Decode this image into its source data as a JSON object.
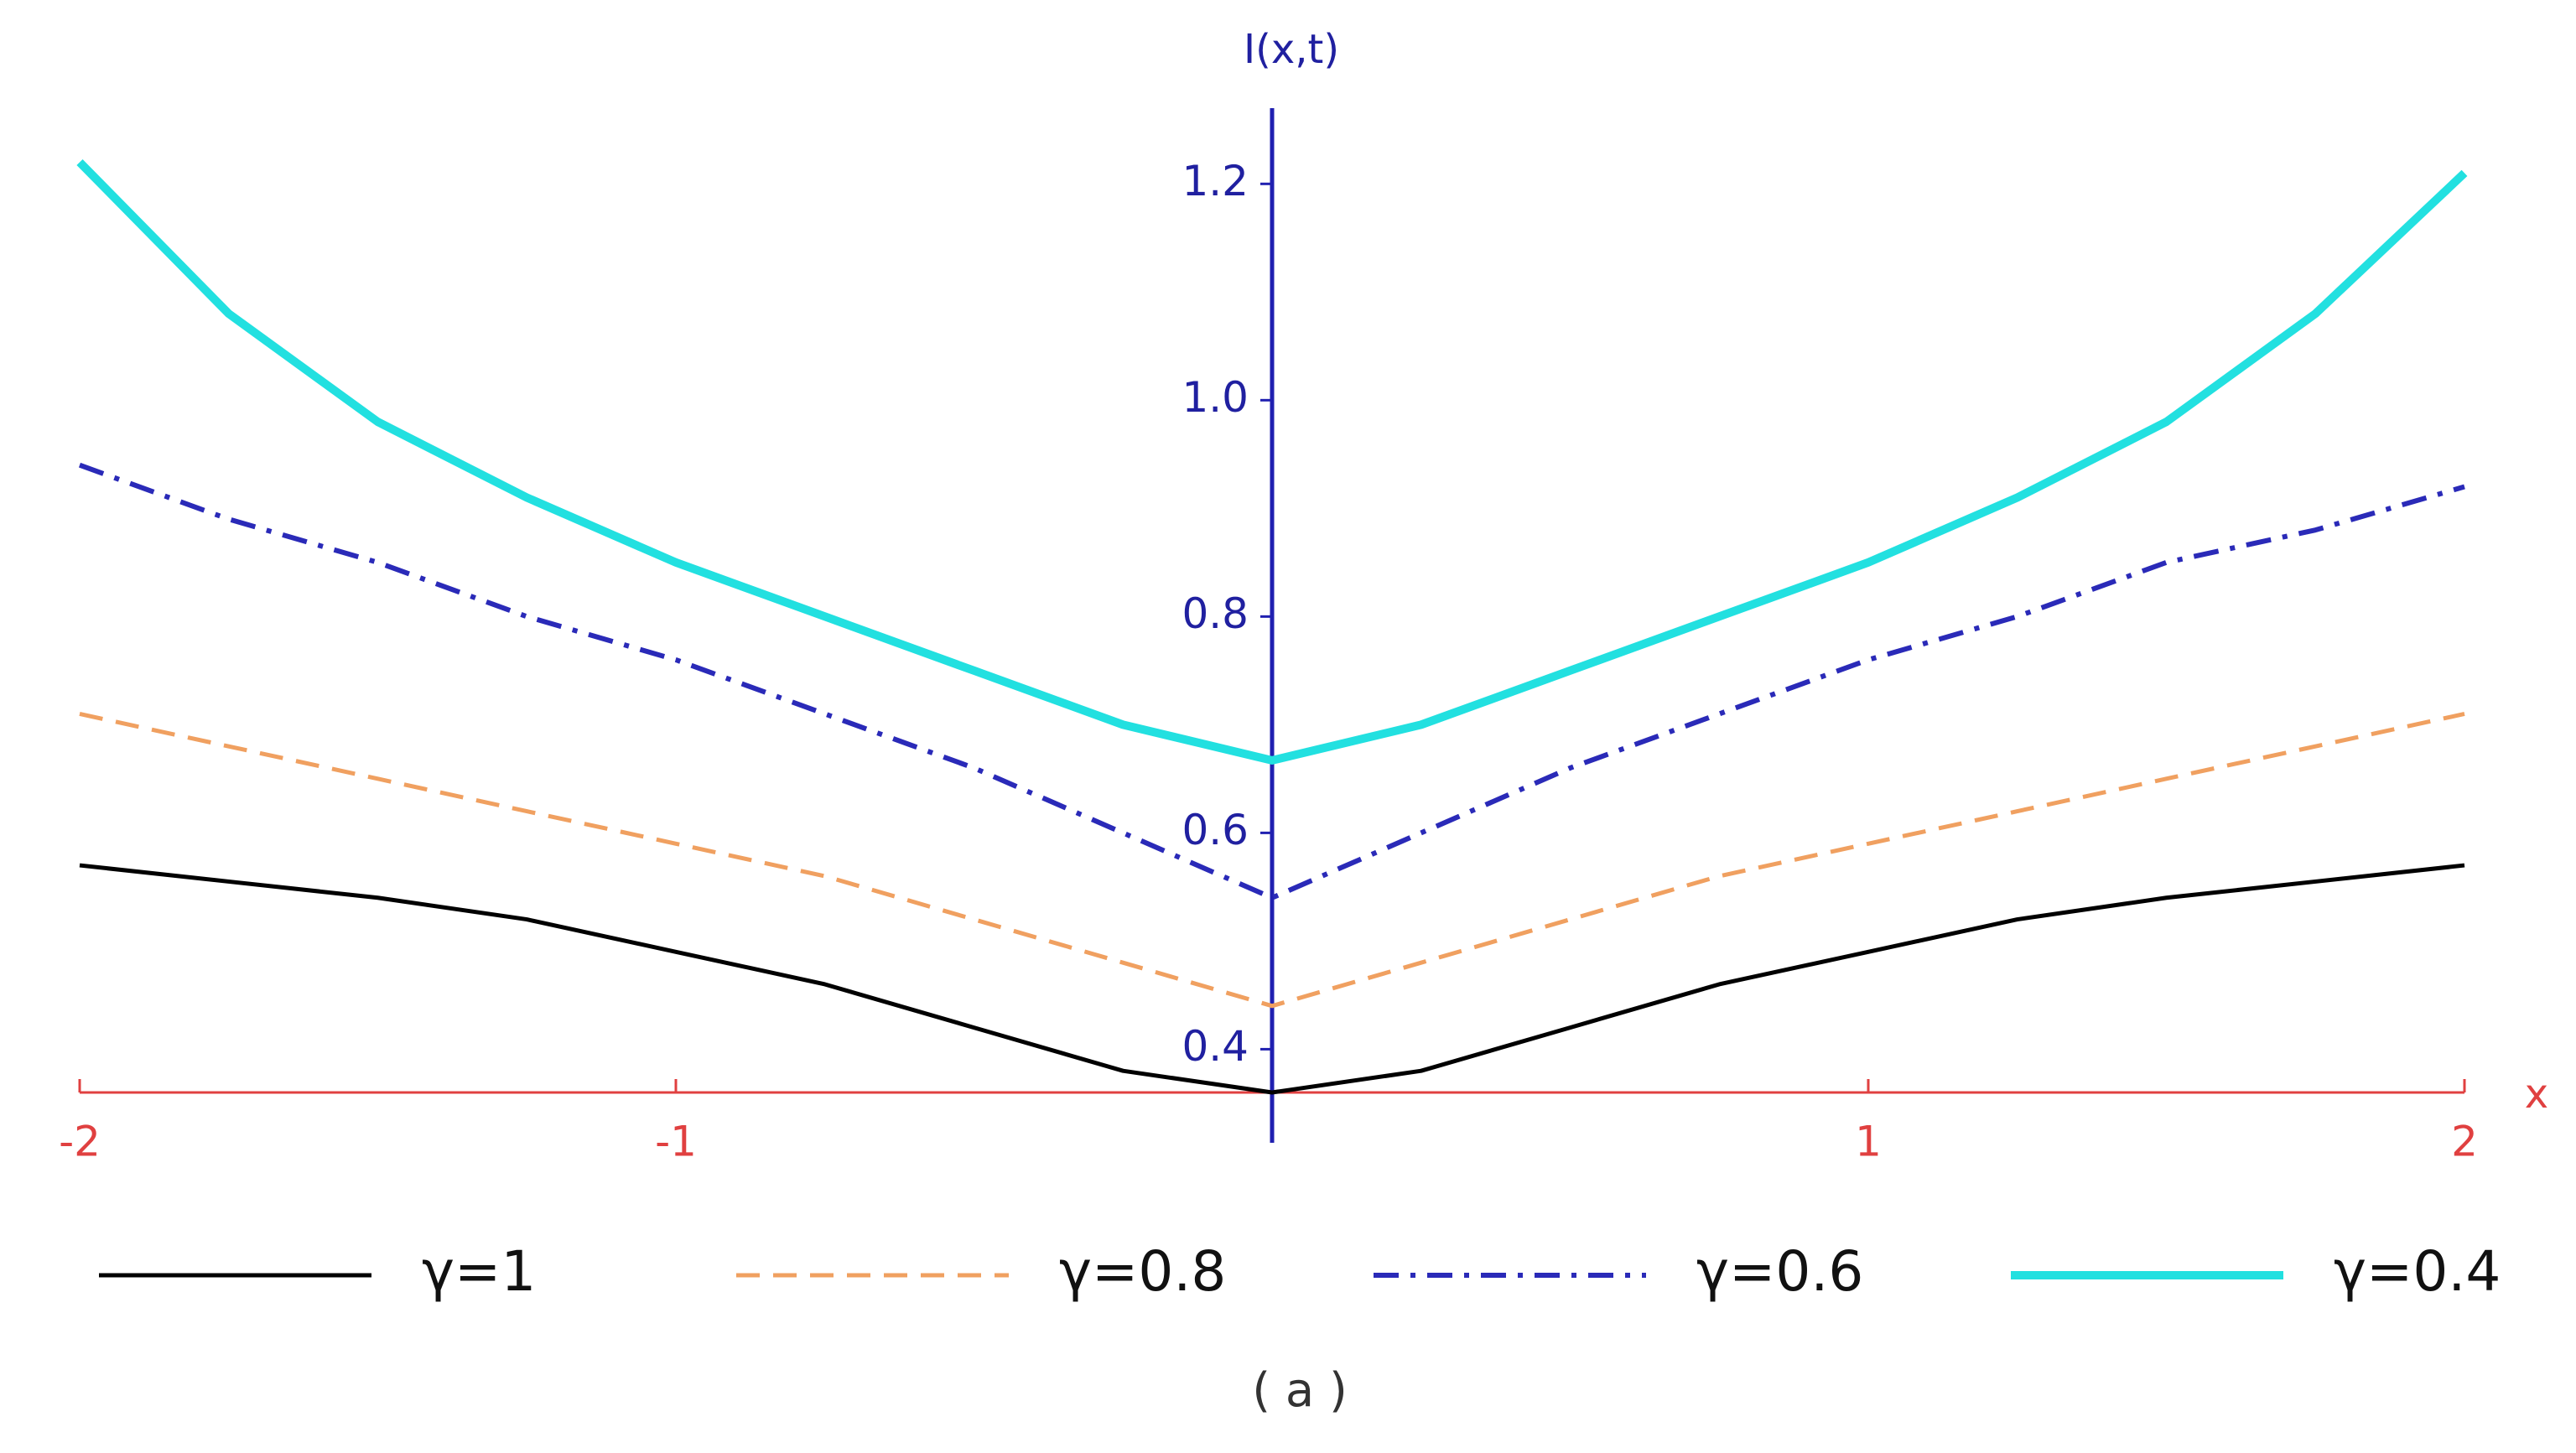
{
  "chart_data": {
    "type": "line",
    "x_label": "x",
    "y_label": "I(x,t)",
    "caption": "( a )",
    "x": [
      -2,
      -1.75,
      -1.5,
      -1.25,
      -1,
      -0.75,
      -0.5,
      -0.25,
      0,
      0.25,
      0.5,
      0.75,
      1,
      1.25,
      1.5,
      1.75,
      2
    ],
    "series": [
      {
        "name": "γ=1",
        "color": "#000000",
        "dash": "solid",
        "values": [
          0.57,
          0.555,
          0.54,
          0.52,
          0.49,
          0.46,
          0.42,
          0.38,
          0.36,
          0.38,
          0.42,
          0.46,
          0.49,
          0.52,
          0.54,
          0.555,
          0.57
        ]
      },
      {
        "name": "γ=0.8",
        "color": "#f0a060",
        "dash": "dashed",
        "values": [
          0.71,
          0.68,
          0.65,
          0.62,
          0.59,
          0.56,
          0.52,
          0.48,
          0.44,
          0.48,
          0.52,
          0.56,
          0.59,
          0.62,
          0.65,
          0.68,
          0.71
        ]
      },
      {
        "name": "γ=0.6",
        "color": "#2a2ab8",
        "dash": "dashdot",
        "values": [
          0.94,
          0.89,
          0.85,
          0.8,
          0.76,
          0.71,
          0.66,
          0.6,
          0.54,
          0.6,
          0.66,
          0.71,
          0.76,
          0.8,
          0.85,
          0.88,
          0.92
        ]
      },
      {
        "name": "γ=0.4",
        "color": "#22e0e0",
        "dash": "solid",
        "values": [
          1.22,
          1.08,
          0.98,
          0.91,
          0.85,
          0.8,
          0.75,
          0.7,
          0.667,
          0.7,
          0.75,
          0.8,
          0.85,
          0.91,
          0.98,
          1.08,
          1.21
        ]
      }
    ],
    "xlim": [
      -2,
      2
    ],
    "ylim": [
      0.36,
      1.27
    ],
    "xticks": [
      -2,
      -1,
      1,
      2
    ],
    "yticks": [
      0.4,
      0.6,
      0.8,
      {
        "value": 1,
        "label": "1.0"
      },
      1.2
    ],
    "legend": "bottom"
  }
}
